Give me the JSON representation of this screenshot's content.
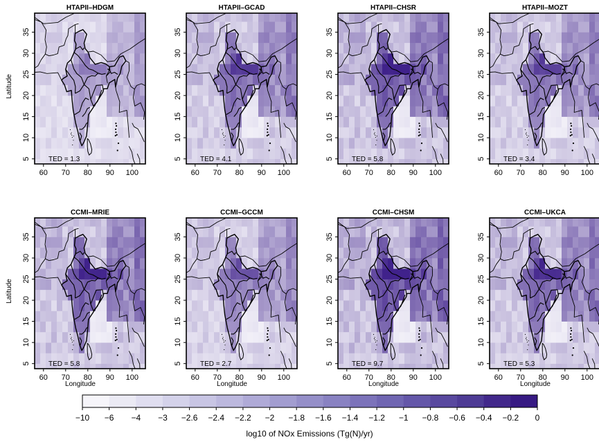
{
  "figure": {
    "panels": [
      {
        "title": "HTAPII–HDGM",
        "ted": "TED = 1.3",
        "intensity": 0.16
      },
      {
        "title": "HTAPII–GCAD",
        "ted": "TED = 4.1",
        "intensity": 0.48
      },
      {
        "title": "HTAPII–CHSR",
        "ted": "TED = 5.8",
        "intensity": 0.62
      },
      {
        "title": "HTAPII–MOZT",
        "ted": "TED = 3.4",
        "intensity": 0.44
      },
      {
        "title": "CCMI–MRIE",
        "ted": "TED = 5.8",
        "intensity": 0.58
      },
      {
        "title": "CCMI–GCCM",
        "ted": "TED = 2.7",
        "intensity": 0.36
      },
      {
        "title": "CCMI–CHSM",
        "ted": "TED = 9.7",
        "intensity": 0.7
      },
      {
        "title": "CCMI–UKCA",
        "ted": "TED = 5.3",
        "intensity": 0.54
      }
    ],
    "ylabel": "Latitude",
    "xlabel": "Longitude",
    "x_ticks": [
      "60",
      "70",
      "80",
      "90",
      "100"
    ],
    "y_ticks": [
      "5",
      "10",
      "15",
      "20",
      "25",
      "30",
      "35"
    ],
    "colorbar": {
      "label": "log10 of NOx Emissions (Tg(N)/yr)",
      "ticks": [
        "−10",
        "−6",
        "−4",
        "−3",
        "−2.6",
        "−2.4",
        "−2.2",
        "−2",
        "−1.8",
        "−1.6",
        "−1.4",
        "−1.2",
        "−1",
        "−0.8",
        "−0.6",
        "−0.4",
        "−0.2",
        "0"
      ],
      "colors": [
        "#f6f5fa",
        "#ebeaf4",
        "#e0def0",
        "#d4d2ea",
        "#c8c5e4",
        "#bcb8de",
        "#afaad7",
        "#a29dd0",
        "#958fc9",
        "#8982c2",
        "#7c73ba",
        "#7066b2",
        "#6457a9",
        "#59499f",
        "#4e3b95",
        "#42288b",
        "#371a83"
      ]
    }
  }
}
